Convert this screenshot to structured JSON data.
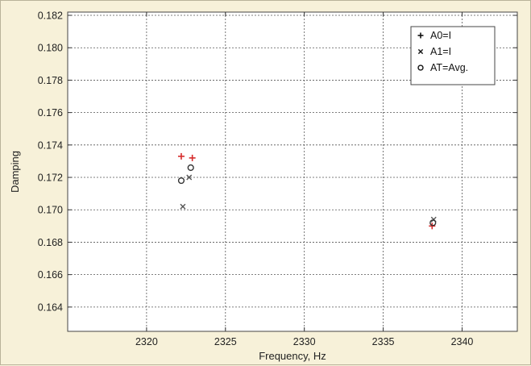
{
  "chart_data": {
    "type": "scatter",
    "title": "",
    "xlabel": "Frequency, Hz",
    "ylabel": "Damping",
    "xlim": [
      2315,
      2343.5
    ],
    "ylim": [
      0.1625,
      0.1822
    ],
    "xticks": [
      2320,
      2325,
      2330,
      2335,
      2340
    ],
    "yticks": [
      0.164,
      0.166,
      0.168,
      0.17,
      0.172,
      0.174,
      0.176,
      0.178,
      0.18,
      0.182
    ],
    "grid": true,
    "legend_position": "top-right",
    "series": [
      {
        "name": "A0=I",
        "marker": "plus",
        "color": "#d62b2b",
        "points": [
          [
            2322.2,
            0.1733
          ],
          [
            2322.9,
            0.1732
          ],
          [
            2338.1,
            0.169
          ]
        ]
      },
      {
        "name": "A1=I",
        "marker": "x",
        "color": "#555555",
        "points": [
          [
            2322.3,
            0.1702
          ],
          [
            2322.7,
            0.172
          ],
          [
            2338.2,
            0.1694
          ]
        ]
      },
      {
        "name": "AT=Avg.",
        "marker": "circle",
        "color": "#333333",
        "points": [
          [
            2322.2,
            0.1718
          ],
          [
            2322.8,
            0.1726
          ],
          [
            2338.15,
            0.1692
          ]
        ]
      }
    ]
  }
}
